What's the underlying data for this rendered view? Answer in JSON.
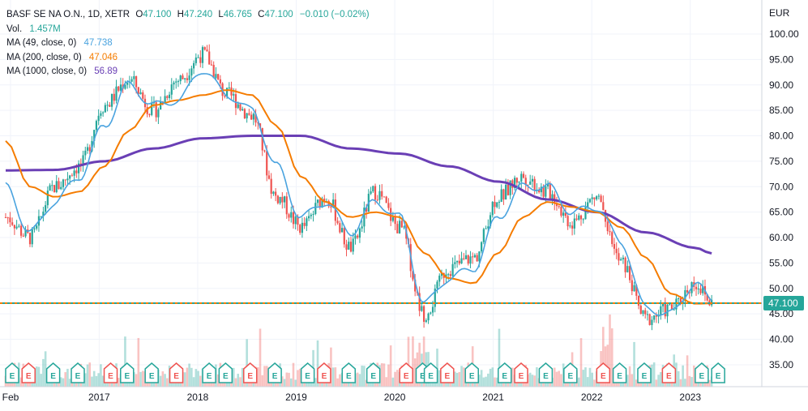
{
  "legend": {
    "symbol": "BASF SE NA O.N., 1D, XETR",
    "o_label": "O",
    "o_value": "47.100",
    "h_label": "H",
    "h_value": "47.240",
    "l_label": "L",
    "l_value": "46.765",
    "c_label": "C",
    "c_value": "47.100",
    "change": "−0.010 (−0.02%)",
    "vol_label": "Vol.",
    "vol_value": "1.457M",
    "ma49_label": "MA (49, close, 0)",
    "ma49_value": "47.738",
    "ma200_label": "MA (200, close, 0)",
    "ma200_value": "47.046",
    "ma1000_label": "MA (1000, close, 0)",
    "ma1000_value": "56.89"
  },
  "price_axis": {
    "currency": "EUR",
    "ticks": [
      "100.00",
      "95.00",
      "90.00",
      "85.00",
      "80.00",
      "75.00",
      "70.00",
      "65.00",
      "60.00",
      "55.00",
      "50.00",
      "45.00",
      "40.00",
      "35.00"
    ],
    "last_price_label": "47.100"
  },
  "time_axis": {
    "labels": [
      "Feb",
      "2017",
      "2018",
      "2019",
      "2020",
      "2021",
      "2022",
      "2023"
    ]
  },
  "colors": {
    "up": "#26a69a",
    "down": "#ef5350",
    "ma49": "#4aa3df",
    "ma200": "#f57c00",
    "ma1000": "#6a3fb5",
    "last_price": "#26a69a"
  },
  "chart_data": {
    "type": "line",
    "instrument": "BASF SE NA O.N.",
    "interval": "1D",
    "exchange": "XETR",
    "ylim": [
      31,
      103
    ],
    "y_unit": "EUR",
    "last_price": 47.1,
    "price_approx": {
      "x": [
        "2016-02",
        "2016-05",
        "2016-08",
        "2016-11",
        "2017-02",
        "2017-05",
        "2017-08",
        "2017-11",
        "2018-02",
        "2018-05",
        "2018-08",
        "2018-11",
        "2019-02",
        "2019-05",
        "2019-08",
        "2019-11",
        "2020-02",
        "2020-05",
        "2020-08",
        "2020-11",
        "2021-02",
        "2021-05",
        "2021-08",
        "2021-11",
        "2022-02",
        "2022-05",
        "2022-08",
        "2022-11",
        "2023-02",
        "2023-04"
      ],
      "y": [
        64,
        60,
        70,
        74,
        86,
        91,
        85,
        91,
        96,
        88,
        84,
        68,
        62,
        68,
        58,
        69,
        62,
        45,
        54,
        56,
        68,
        72,
        69,
        63,
        68,
        55,
        44,
        46,
        51,
        47.1
      ]
    },
    "ma49_approx": {
      "x": [
        "2016-02",
        "2016-05",
        "2016-08",
        "2016-11",
        "2017-02",
        "2017-05",
        "2017-08",
        "2017-11",
        "2018-02",
        "2018-05",
        "2018-08",
        "2018-11",
        "2019-02",
        "2019-05",
        "2019-08",
        "2019-11",
        "2020-02",
        "2020-05",
        "2020-08",
        "2020-11",
        "2021-02",
        "2021-05",
        "2021-08",
        "2021-11",
        "2022-02",
        "2022-05",
        "2022-08",
        "2022-11",
        "2023-02",
        "2023-04"
      ],
      "y": [
        70,
        61,
        67,
        72,
        82,
        90,
        86,
        87,
        93,
        88,
        85,
        74,
        64,
        67,
        61,
        67,
        64,
        47,
        52,
        54,
        64,
        70,
        70,
        65,
        66,
        59,
        46,
        45,
        51,
        47.738
      ]
    },
    "ma200_approx": {
      "x": [
        "2016-02",
        "2016-05",
        "2016-08",
        "2016-11",
        "2017-02",
        "2017-05",
        "2017-08",
        "2017-11",
        "2018-02",
        "2018-05",
        "2018-08",
        "2018-11",
        "2019-02",
        "2019-05",
        "2019-08",
        "2019-11",
        "2020-02",
        "2020-05",
        "2020-08",
        "2020-11",
        "2021-02",
        "2021-05",
        "2021-08",
        "2021-11",
        "2022-02",
        "2022-05",
        "2022-08",
        "2022-11",
        "2023-02",
        "2023-04"
      ],
      "y": [
        79,
        70,
        68,
        69,
        74,
        81,
        86,
        87,
        88,
        89,
        88,
        82,
        72,
        67,
        64,
        65,
        64,
        57,
        52,
        51,
        57,
        64,
        67,
        66,
        65,
        62,
        56,
        49,
        47,
        47.046
      ]
    },
    "ma1000_approx": {
      "x": [
        "2016-02",
        "2016-08",
        "2017-02",
        "2017-08",
        "2018-02",
        "2018-08",
        "2019-02",
        "2019-08",
        "2020-02",
        "2020-08",
        "2021-02",
        "2021-08",
        "2022-02",
        "2022-08",
        "2023-02",
        "2023-04"
      ],
      "y": [
        73.2,
        73.3,
        75,
        77.5,
        79.5,
        80,
        80,
        77.5,
        76.5,
        74,
        71,
        67.5,
        65,
        61,
        58,
        56.89
      ]
    },
    "earnings_markers_approx": [
      "2016-02",
      "2016-04",
      "2016-07",
      "2016-10",
      "2017-02",
      "2017-04",
      "2017-07",
      "2017-10",
      "2018-02",
      "2018-04",
      "2018-07",
      "2018-10",
      "2019-02",
      "2019-04",
      "2019-07",
      "2019-10",
      "2020-02",
      "2020-04",
      "2020-05",
      "2020-07",
      "2020-10",
      "2021-02",
      "2021-04",
      "2021-07",
      "2021-10",
      "2022-02",
      "2022-04",
      "2022-07",
      "2022-10",
      "2023-02",
      "2023-04"
    ]
  }
}
